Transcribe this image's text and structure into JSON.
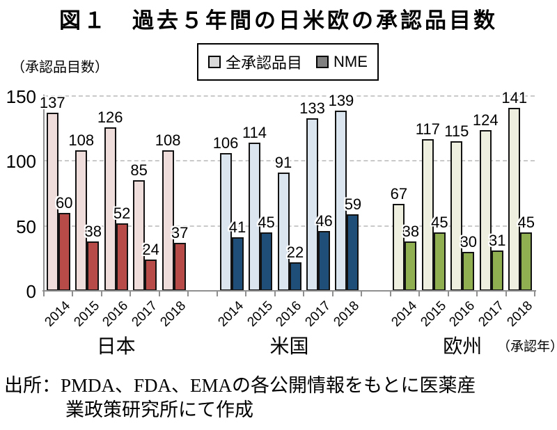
{
  "chart_data": {
    "type": "bar",
    "title": "図１　過去５年間の日米欧の承認品目数",
    "y_axis_unit": "（承認品目数）",
    "x_axis_note": "（承認年）",
    "ylim": [
      0,
      150
    ],
    "yticks": [
      0,
      50,
      100,
      150
    ],
    "grid": "horizontal dashed gridlines at 50, 100, 150",
    "legend_position": "top-center, boxed",
    "categories": [
      "2014",
      "2015",
      "2016",
      "2017",
      "2018"
    ],
    "legend": [
      {
        "label": "全承認品目",
        "swatch": "#D9D9D9"
      },
      {
        "label": "NME",
        "swatch": "#808080"
      }
    ],
    "groups": [
      {
        "label": "日本",
        "colors": {
          "total": "#EFDDDC",
          "nme": "#B74B47"
        },
        "series": [
          {
            "name": "全承認品目",
            "values": [
              137,
              108,
              126,
              85,
              108
            ]
          },
          {
            "name": "NME",
            "values": [
              60,
              38,
              52,
              24,
              37
            ]
          }
        ]
      },
      {
        "label": "米国",
        "colors": {
          "total": "#DBE5F0",
          "nme": "#1F4E79"
        },
        "series": [
          {
            "name": "全承認品目",
            "values": [
              106,
              114,
              91,
              133,
              139
            ]
          },
          {
            "name": "NME",
            "values": [
              41,
              45,
              22,
              46,
              59
            ]
          }
        ]
      },
      {
        "label": "欧州",
        "colors": {
          "total": "#EEEFDE",
          "nme": "#8FAF51"
        },
        "series": [
          {
            "name": "全承認品目",
            "values": [
              67,
              117,
              115,
              124,
              141
            ]
          },
          {
            "name": "NME",
            "values": [
              38,
              45,
              30,
              31,
              45
            ]
          }
        ]
      }
    ],
    "source_lines": [
      "出所：PMDA、FDA、EMAの各公開情報をもとに医薬産",
      "業政策研究所にて作成"
    ]
  }
}
